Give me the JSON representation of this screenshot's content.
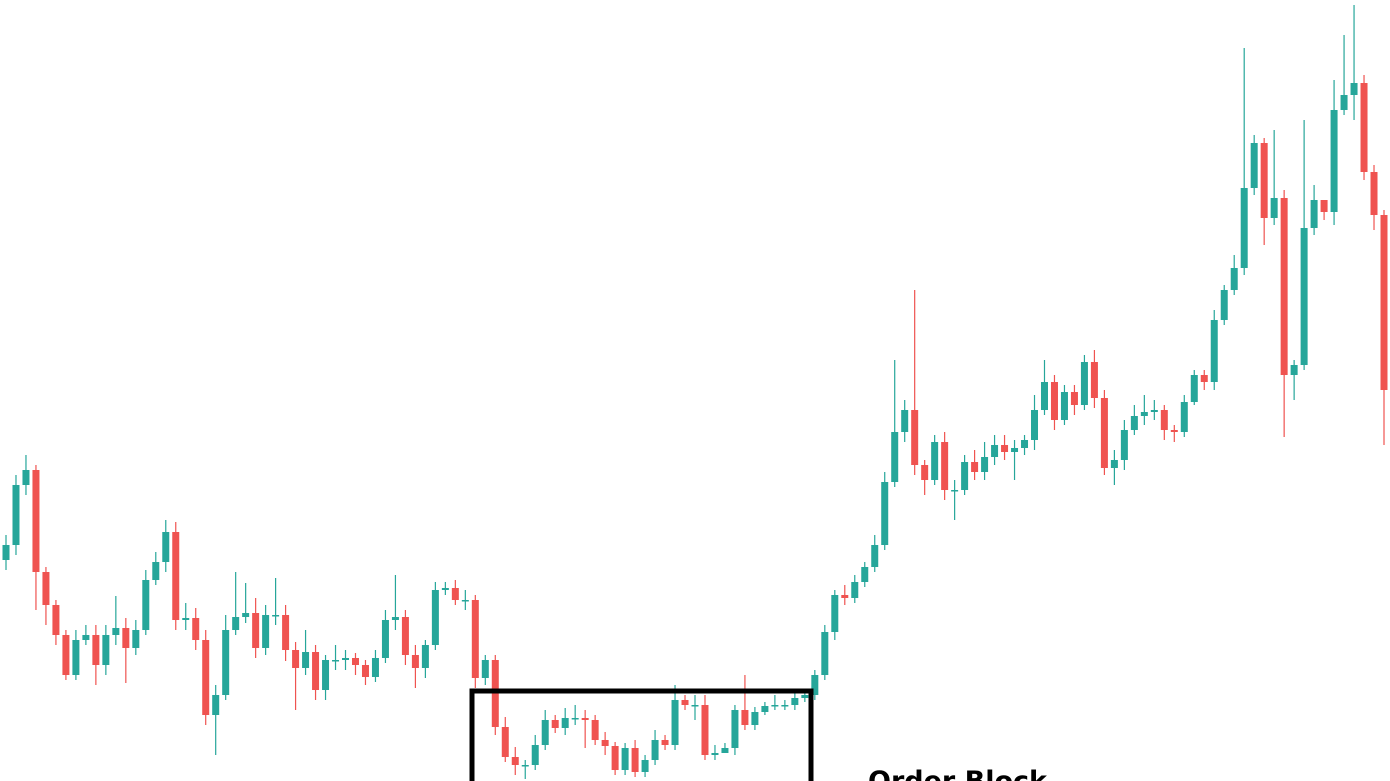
{
  "chart_data": {
    "type": "candlestick",
    "annotation": "Order Block",
    "ylim": [
      0,
      781
    ],
    "up_color": "#26a69a",
    "down_color": "#ef5350",
    "open": [
      221,
      236,
      296,
      311,
      209,
      176,
      146,
      106,
      141,
      146,
      116,
      146,
      153,
      133,
      151,
      201,
      219,
      249,
      161,
      163,
      141,
      66,
      86,
      151,
      164,
      168,
      133,
      166,
      166,
      131,
      113,
      129,
      91,
      121,
      121,
      123,
      116,
      104,
      123,
      161,
      164,
      126,
      113,
      136,
      191,
      193,
      181,
      181,
      103,
      121,
      54,
      24,
      16,
      16,
      36,
      61,
      53,
      63,
      63,
      61,
      41,
      35,
      11,
      33,
      9,
      21,
      41,
      36,
      81,
      76,
      76,
      26,
      28,
      33,
      71,
      56,
      69,
      75,
      76,
      76,
      83,
      86,
      106,
      149,
      186,
      183,
      199,
      214,
      236,
      299,
      349,
      371,
      316,
      301,
      339,
      291,
      291,
      319,
      309,
      324,
      336,
      329,
      333,
      341,
      371,
      399,
      361,
      389,
      376,
      419,
      383,
      313,
      321,
      351,
      365,
      369,
      371,
      351,
      349,
      379,
      406,
      399,
      461,
      491,
      513,
      593,
      638,
      563,
      583,
      406,
      416,
      553,
      581,
      569,
      671,
      686,
      698,
      609,
      566
    ],
    "high": [
      246,
      306,
      326,
      316,
      214,
      181,
      151,
      151,
      156,
      156,
      156,
      185,
      163,
      161,
      211,
      229,
      261,
      259,
      178,
      173,
      151,
      96,
      166,
      209,
      198,
      183,
      176,
      203,
      176,
      139,
      151,
      136,
      126,
      136,
      131,
      128,
      121,
      131,
      171,
      206,
      171,
      136,
      141,
      199,
      199,
      201,
      191,
      186,
      126,
      126,
      64,
      34,
      21,
      46,
      71,
      66,
      73,
      76,
      71,
      66,
      49,
      39,
      38,
      41,
      26,
      51,
      46,
      96,
      86,
      86,
      86,
      36,
      38,
      76,
      106,
      74,
      79,
      86,
      81,
      91,
      91,
      111,
      156,
      191,
      196,
      206,
      219,
      246,
      309,
      421,
      381,
      491,
      321,
      346,
      349,
      301,
      326,
      331,
      339,
      346,
      346,
      341,
      346,
      386,
      421,
      406,
      396,
      396,
      426,
      431,
      391,
      331,
      361,
      376,
      386,
      381,
      376,
      356,
      386,
      411,
      411,
      471,
      496,
      526,
      733,
      646,
      643,
      651,
      591,
      421,
      661,
      596,
      581,
      701,
      746,
      776,
      706,
      616,
      571
    ],
    "low": [
      211,
      226,
      286,
      171,
      156,
      136,
      101,
      101,
      136,
      96,
      106,
      136,
      98,
      126,
      146,
      196,
      209,
      151,
      151,
      131,
      56,
      26,
      81,
      146,
      158,
      123,
      126,
      156,
      120,
      71,
      106,
      81,
      81,
      111,
      111,
      106,
      96,
      99,
      118,
      151,
      116,
      93,
      103,
      131,
      186,
      176,
      171,
      93,
      96,
      46,
      19,
      6,
      2,
      11,
      31,
      48,
      46,
      56,
      33,
      36,
      26,
      6,
      6,
      4,
      4,
      16,
      31,
      31,
      71,
      61,
      21,
      21,
      28,
      26,
      51,
      51,
      66,
      71,
      71,
      71,
      79,
      81,
      101,
      141,
      176,
      178,
      194,
      209,
      231,
      294,
      339,
      306,
      286,
      296,
      281,
      261,
      286,
      301,
      301,
      316,
      321,
      301,
      326,
      331,
      366,
      351,
      356,
      366,
      371,
      373,
      306,
      296,
      311,
      346,
      356,
      361,
      341,
      339,
      344,
      376,
      391,
      391,
      456,
      486,
      506,
      586,
      536,
      556,
      344,
      381,
      411,
      546,
      561,
      556,
      666,
      661,
      601,
      551,
      336
    ],
    "close": [
      236,
      296,
      311,
      209,
      176,
      146,
      106,
      141,
      146,
      116,
      146,
      153,
      133,
      151,
      201,
      219,
      249,
      161,
      163,
      141,
      66,
      86,
      151,
      164,
      168,
      133,
      166,
      166,
      131,
      113,
      129,
      91,
      121,
      121,
      123,
      116,
      104,
      123,
      161,
      164,
      126,
      113,
      136,
      191,
      193,
      181,
      181,
      103,
      121,
      54,
      24,
      16,
      16,
      36,
      61,
      53,
      63,
      63,
      61,
      41,
      35,
      11,
      33,
      9,
      21,
      41,
      36,
      81,
      76,
      76,
      26,
      28,
      33,
      71,
      56,
      69,
      75,
      76,
      76,
      83,
      86,
      106,
      149,
      186,
      183,
      199,
      214,
      236,
      299,
      349,
      371,
      316,
      301,
      339,
      291,
      291,
      319,
      309,
      324,
      336,
      329,
      333,
      341,
      371,
      399,
      361,
      389,
      376,
      419,
      383,
      313,
      321,
      351,
      365,
      369,
      371,
      351,
      349,
      379,
      406,
      399,
      461,
      491,
      513,
      593,
      638,
      563,
      583,
      406,
      416,
      553,
      581,
      569,
      671,
      686,
      698,
      609,
      566,
      391
    ]
  }
}
